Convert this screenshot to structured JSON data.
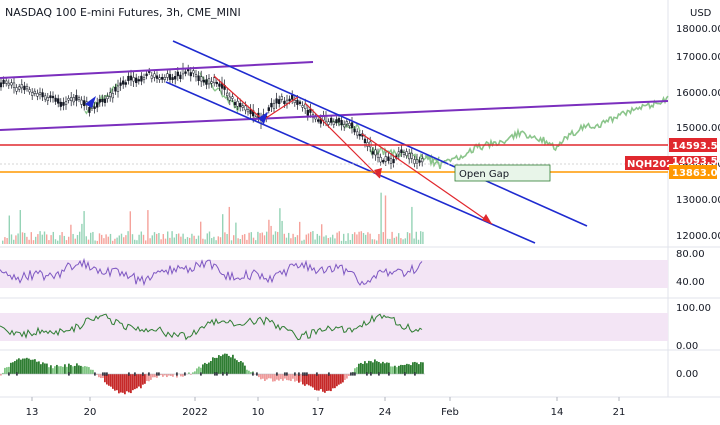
{
  "header": {
    "title": "NASDAQ 100 E-mini Futures, 3h, CME_MINI",
    "currency": "USD"
  },
  "price_axis": {
    "ticks": [
      "18000.00",
      "17000.00",
      "16000.00",
      "15000.00",
      "14000.00",
      "13000.00",
      "12000.00"
    ],
    "tags": {
      "red_level": "14593.50",
      "symbol": "NQH2022",
      "hidden_price": "14093.50",
      "orange_level": "13863.00"
    }
  },
  "annotations": {
    "open_gap": "Open Gap"
  },
  "rsi_pane": {
    "ticks": [
      "80.00",
      "40.00"
    ]
  },
  "osc_pane": {
    "ticks": [
      "100.00",
      "0.00"
    ]
  },
  "hist_pane": {
    "ticks": [
      "0.00"
    ]
  },
  "time_axis": {
    "labels": [
      "13",
      "20",
      "2022",
      "10",
      "17",
      "24",
      "Feb",
      "14",
      "21"
    ]
  },
  "colors": {
    "candle_up": "#131722",
    "candle_down": "#131722",
    "purple_channel": "#7b2fbe",
    "blue_channel": "#1f2bd0",
    "red_level": "#e0282e",
    "orange_level": "#ff9800",
    "forecast_green": "#8bc58b",
    "volume_red": "#f28b82",
    "volume_green": "#7bc8a4",
    "rsi_line": "#7e57c2",
    "rsi_band": "#f3e5f5",
    "osc_line": "#2e7d32"
  }
}
